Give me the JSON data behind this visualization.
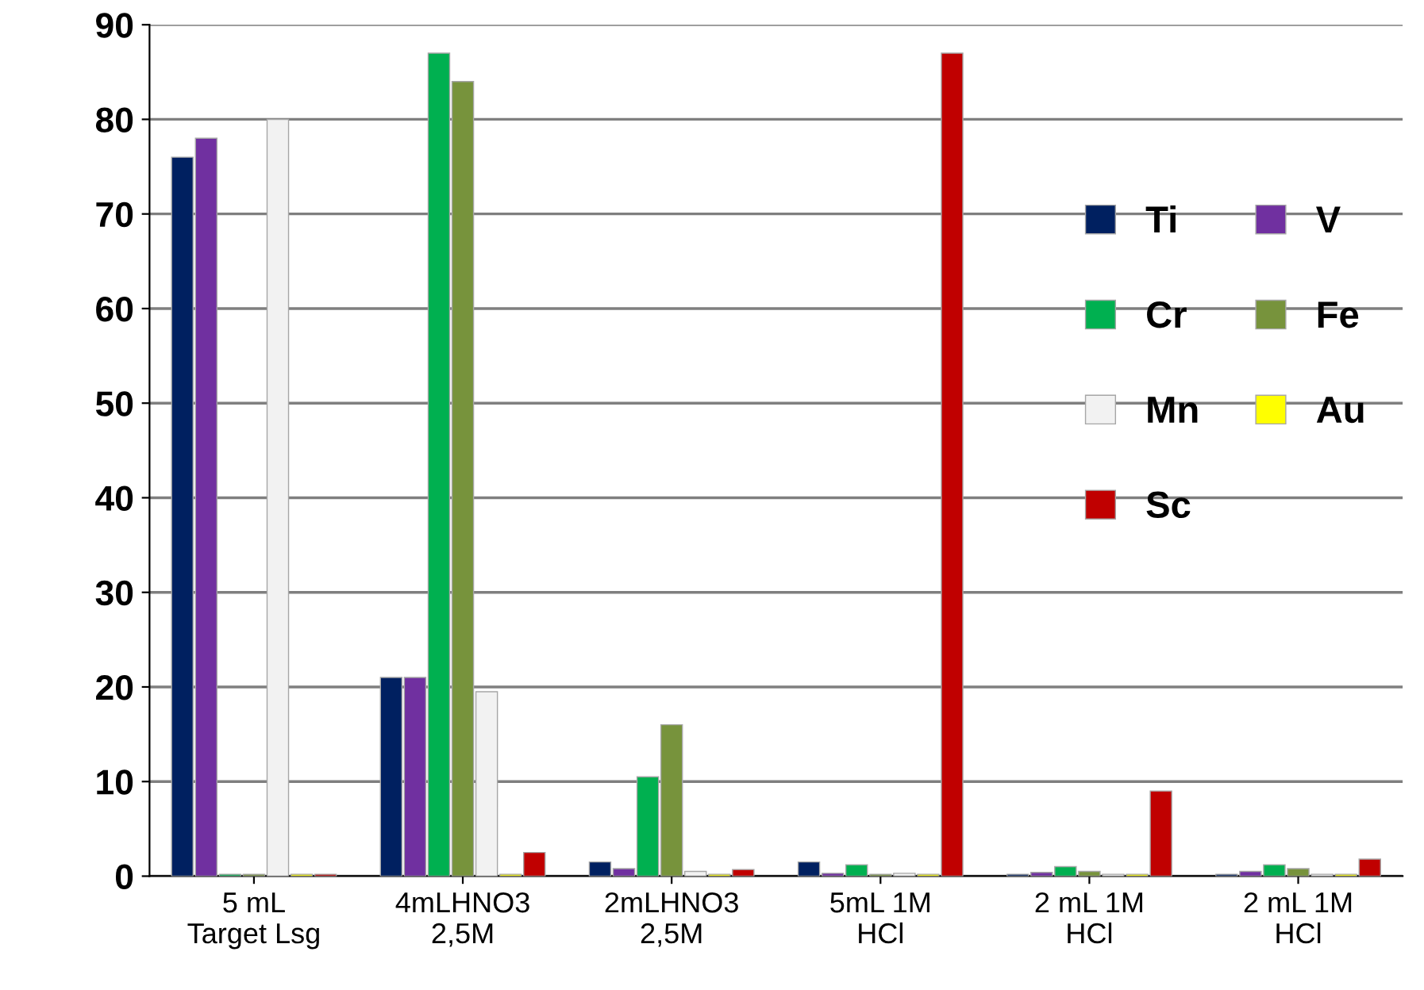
{
  "chart_data": {
    "type": "bar",
    "categories": [
      "5 mL\nTarget Lsg",
      "4mLHNO3\n2,5M",
      "2mLHNO3\n2,5M",
      "5mL 1M\nHCl",
      "2 mL 1M\nHCl",
      "2 mL 1M\nHCl"
    ],
    "series": [
      {
        "name": "Ti",
        "color": "#002060",
        "values": [
          76,
          21,
          1.5,
          1.5,
          0.2,
          0.2
        ]
      },
      {
        "name": "V",
        "color": "#7030a0",
        "values": [
          78,
          21,
          0.8,
          0.3,
          0.4,
          0.5
        ]
      },
      {
        "name": "Cr",
        "color": "#00b050",
        "values": [
          0.2,
          87,
          10.5,
          1.2,
          1,
          1.2
        ]
      },
      {
        "name": "Fe",
        "color": "#77933c",
        "values": [
          0.2,
          84,
          16,
          0.2,
          0.5,
          0.8
        ]
      },
      {
        "name": "Mn",
        "color": "#f2f2f2",
        "values": [
          80,
          19.5,
          0.5,
          0.3,
          0.2,
          0.2
        ]
      },
      {
        "name": "Au",
        "color": "#ffff00",
        "values": [
          0.2,
          0.2,
          0.2,
          0.2,
          0.2,
          0.2
        ]
      },
      {
        "name": "Sc",
        "color": "#c00000",
        "values": [
          0.2,
          2.5,
          0.7,
          87,
          9,
          1.8
        ]
      }
    ],
    "ylim": [
      0,
      90
    ],
    "yticks": [
      0,
      10,
      20,
      30,
      40,
      50,
      60,
      70,
      80,
      90
    ],
    "grid": "y",
    "legend": "right"
  }
}
